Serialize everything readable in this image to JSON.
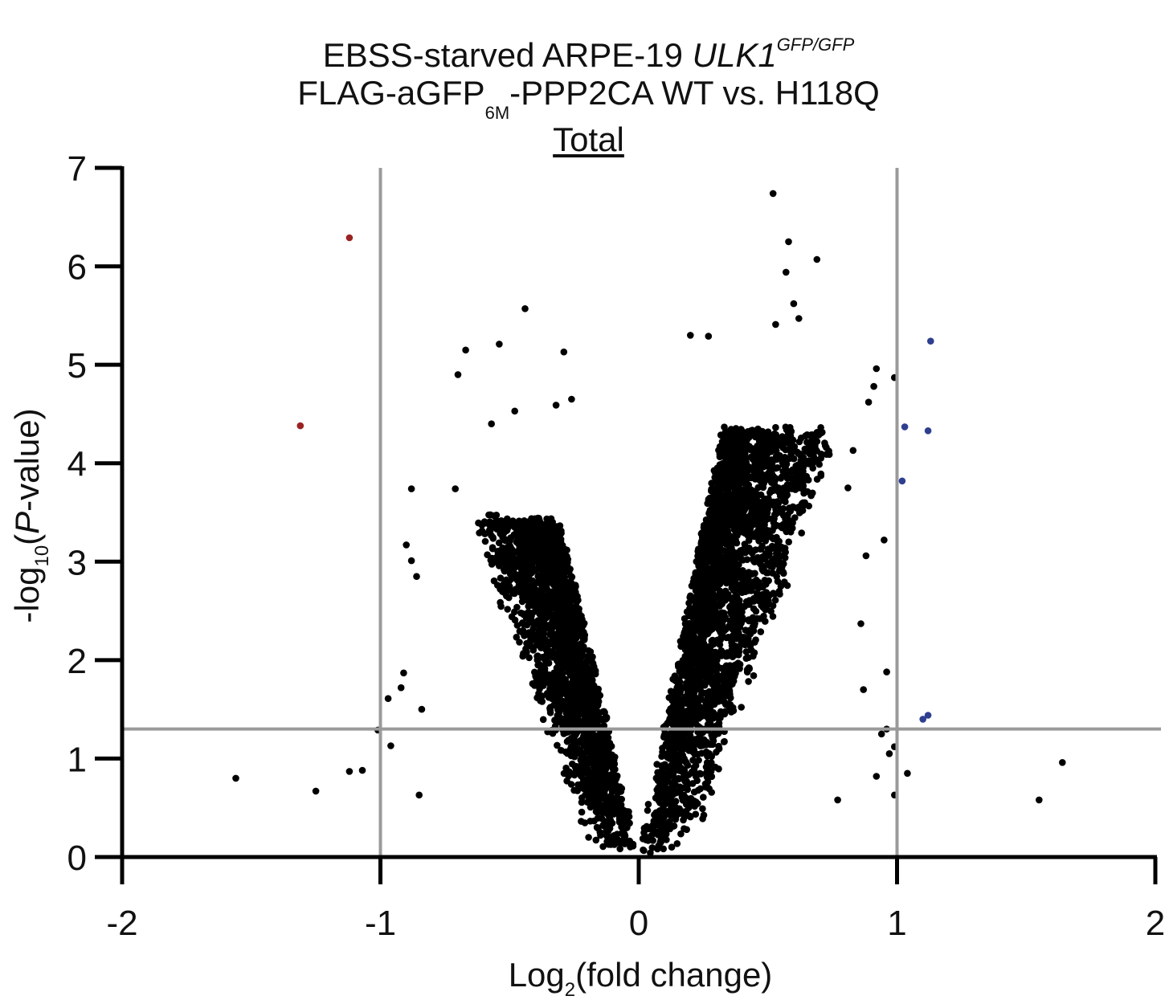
{
  "title": {
    "line1_prefix": "EBSS-starved ARPE-19 ",
    "line1_gene": "ULK1",
    "line1_sup": "GFP/GFP",
    "line2_a": "FLAG-aGFP",
    "line2_sub": "6M",
    "line2_b": "-PPP2CA WT vs. H118Q",
    "line3": "Total"
  },
  "colors": {
    "axis": "#000000",
    "threshold_lines": "#9a9a9a",
    "points_default": "#000000",
    "points_down": "#9a2222",
    "points_up": "#2e3f8f"
  },
  "chart_data": {
    "type": "scatter",
    "xlabel": "Log2(fold change)",
    "xlabel_parts": {
      "pre": "Log",
      "sub": "2",
      "post": "(fold change)"
    },
    "ylabel": "-log10(P-value)",
    "ylabel_parts": {
      "pre": "-log",
      "sub": "10",
      "open": "(",
      "italic": "P",
      "post": "-value)"
    },
    "xlim": [
      -2,
      2
    ],
    "ylim": [
      0,
      7
    ],
    "x_ticks": [
      -2,
      -1,
      0,
      1,
      2
    ],
    "x_tick_labels": [
      "-2",
      "-1",
      "0",
      "1",
      "2"
    ],
    "y_ticks": [
      0,
      1,
      2,
      3,
      4,
      5,
      6,
      7
    ],
    "y_tick_labels": [
      "0",
      "1",
      "2",
      "3",
      "4",
      "5",
      "6",
      "7"
    ],
    "grid": false,
    "thresholds": {
      "log2fc": [
        -1,
        1
      ],
      "neg_log10_p": 1.3
    },
    "series": [
      {
        "role": "significant_down",
        "color": "#9a2222",
        "points": [
          [
            -1.12,
            6.29
          ],
          [
            -1.31,
            4.38
          ]
        ]
      },
      {
        "role": "significant_up",
        "color": "#2e3f8f",
        "points": [
          [
            1.13,
            5.24
          ],
          [
            1.03,
            4.37
          ],
          [
            1.12,
            4.33
          ],
          [
            1.02,
            3.82
          ],
          [
            1.12,
            1.44
          ],
          [
            1.1,
            1.4
          ]
        ]
      },
      {
        "role": "not_significant",
        "color": "#000000",
        "points": [
          [
            0.52,
            6.74
          ],
          [
            0.58,
            6.25
          ],
          [
            0.69,
            6.07
          ],
          [
            0.57,
            5.94
          ],
          [
            0.6,
            5.62
          ],
          [
            0.62,
            5.47
          ],
          [
            0.53,
            5.41
          ],
          [
            -0.44,
            5.57
          ],
          [
            -0.54,
            5.21
          ],
          [
            -0.67,
            5.15
          ],
          [
            -0.29,
            5.13
          ],
          [
            0.2,
            5.3
          ],
          [
            0.27,
            5.29
          ],
          [
            -0.7,
            4.9
          ],
          [
            -0.26,
            4.65
          ],
          [
            -0.57,
            4.4
          ],
          [
            -0.32,
            4.59
          ],
          [
            -0.48,
            4.53
          ],
          [
            -0.88,
            3.74
          ],
          [
            -0.71,
            3.74
          ],
          [
            -0.9,
            3.17
          ],
          [
            -0.88,
            3.01
          ],
          [
            -0.86,
            2.85
          ],
          [
            -0.91,
            1.87
          ],
          [
            -0.92,
            1.72
          ],
          [
            -0.84,
            1.5
          ],
          [
            -0.96,
            1.13
          ],
          [
            -1.01,
            1.29
          ],
          [
            -0.97,
            1.61
          ],
          [
            -1.07,
            0.88
          ],
          [
            -1.12,
            0.87
          ],
          [
            -1.25,
            0.67
          ],
          [
            -1.56,
            0.8
          ],
          [
            -0.85,
            0.63
          ],
          [
            0.91,
            4.78
          ],
          [
            0.89,
            4.62
          ],
          [
            0.83,
            4.13
          ],
          [
            0.81,
            3.75
          ],
          [
            0.88,
            3.06
          ],
          [
            0.86,
            2.37
          ],
          [
            0.96,
            1.88
          ],
          [
            0.94,
            1.25
          ],
          [
            0.97,
            1.05
          ],
          [
            0.99,
            4.87
          ],
          [
            0.92,
            4.96
          ],
          [
            0.99,
            0.63
          ],
          [
            0.92,
            0.82
          ],
          [
            1.04,
            0.85
          ],
          [
            1.55,
            0.58
          ],
          [
            1.64,
            0.96
          ],
          [
            0.96,
            1.3
          ],
          [
            0.99,
            1.12
          ],
          [
            0.77,
            0.58
          ],
          [
            0.87,
            1.7
          ],
          [
            0.95,
            3.22
          ]
        ]
      }
    ]
  }
}
